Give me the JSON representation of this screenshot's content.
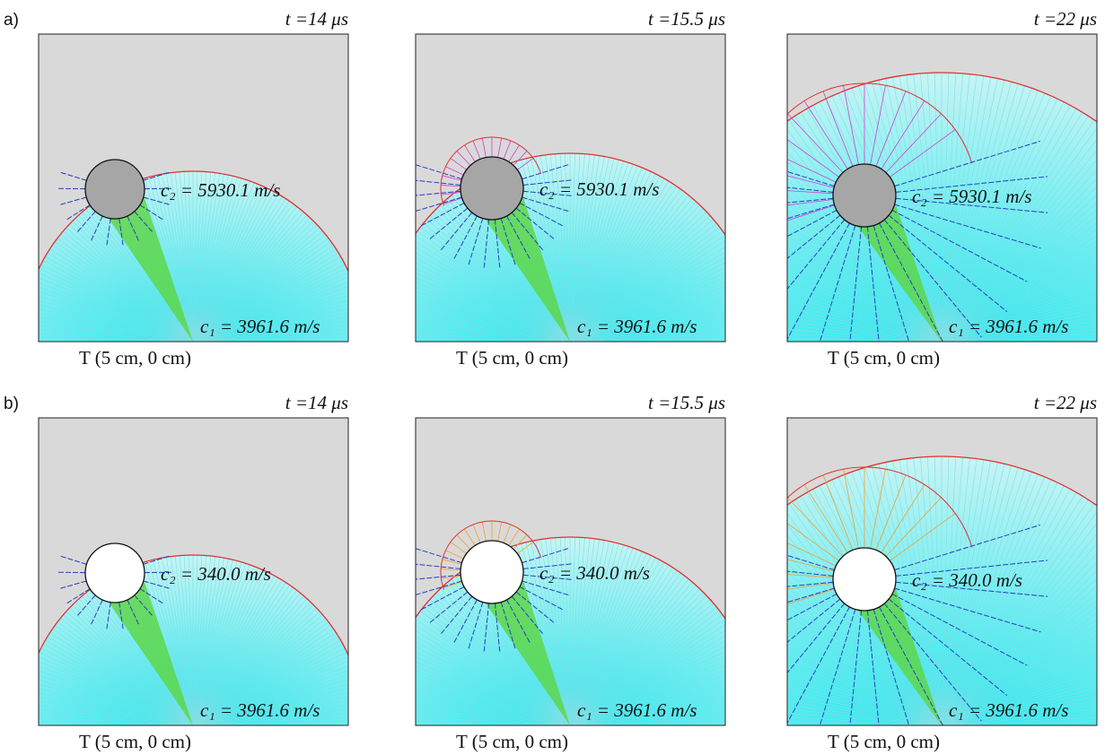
{
  "rows": [
    {
      "label": "a)",
      "panels": [
        {
          "time": "t =14 μs",
          "c2": "c₂ = 5930.1 m/s",
          "c1": "c₁ = 3961.6 m/s",
          "source": "T (5 cm, 0 cm)"
        },
        {
          "time": "t =15.5 μs",
          "c2": "c₂ = 5930.1 m/s",
          "c1": "c₁ = 3961.6 m/s",
          "source": "T (5 cm, 0 cm)"
        },
        {
          "time": "t =22 μs",
          "c2": "c₂ = 5930.1 m/s",
          "c1": "c₁ = 3961.6 m/s",
          "source": "T (5 cm, 0 cm)"
        }
      ]
    },
    {
      "label": "b)",
      "panels": [
        {
          "time": "t =14 μs",
          "c2": "c₂ = 340.0 m/s",
          "c1": "c₁ = 3961.6 m/s",
          "source": "T (5 cm, 0 cm)"
        },
        {
          "time": "t =15.5 μs",
          "c2": "c₂ = 340.0 m/s",
          "c1": "c₁ = 3961.6 m/s",
          "source": "T (5 cm, 0 cm)"
        },
        {
          "time": "t =22 μs",
          "c2": "c₂ = 340.0 m/s",
          "c1": "c₁ = 3961.6 m/s",
          "source": "T (5 cm, 0 cm)"
        }
      ]
    }
  ]
}
